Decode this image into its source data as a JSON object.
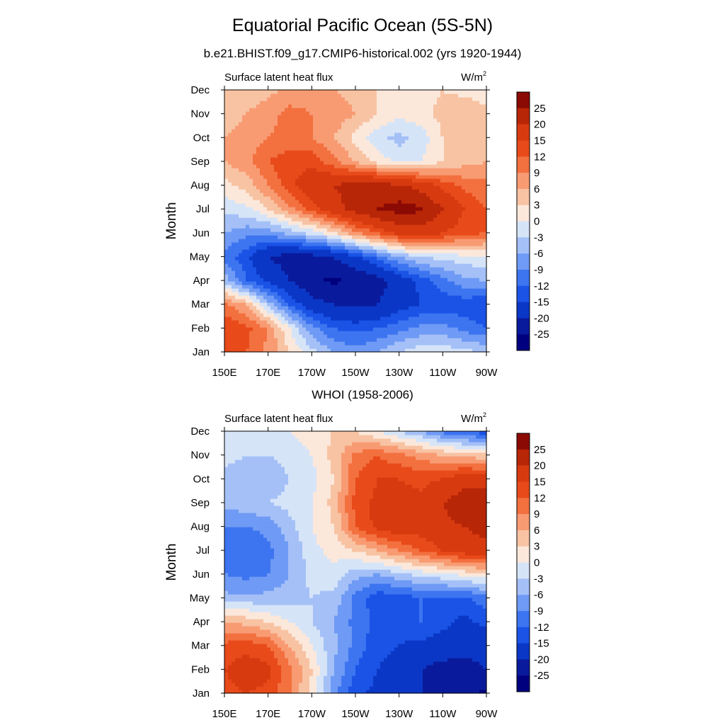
{
  "page": {
    "title": "Equatorial Pacific Ocean (5S-5N)",
    "colors": {
      "levels_neg": [
        "#00007f",
        "#0a1a9c",
        "#0b37c6",
        "#1a53e6",
        "#3d74f0",
        "#6f9af5",
        "#a4c0f7",
        "#d6e4f8"
      ],
      "levels_pos": [
        "#fbe8db",
        "#f8c3a3",
        "#f89b73",
        "#f3703f",
        "#e84a1a",
        "#d83a10",
        "#b82608",
        "#8b0a04"
      ]
    }
  },
  "chart_data": [
    {
      "type": "heatmap",
      "subtitle": "b.e21.BHIST.f09_g17.CMIP6-historical.002 (yrs 1920-1944)",
      "left_label": "Surface latent heat flux",
      "units_label": "W/m",
      "units_sup": "2",
      "ylabel": "Month",
      "x_ticks": [
        "150E",
        "170E",
        "170W",
        "150W",
        "130W",
        "110W",
        "90W"
      ],
      "y_ticks": [
        "Jan",
        "Feb",
        "Mar",
        "Apr",
        "May",
        "Jun",
        "Jul",
        "Aug",
        "Sep",
        "Oct",
        "Nov",
        "Dec"
      ],
      "colorbar_labels": [
        "25",
        "20",
        "15",
        "12",
        "9",
        "6",
        "3",
        "0",
        "-3",
        "-6",
        "-9",
        "-12",
        "-15",
        "-20",
        "-25"
      ],
      "x_lon_east": [
        150,
        160,
        170,
        180,
        190,
        200,
        210,
        220,
        230,
        240,
        250,
        260,
        270
      ],
      "values": [
        [
          14,
          12,
          8,
          3,
          -2,
          -6,
          -8,
          -6,
          -3,
          -1,
          -1,
          -2,
          -3
        ],
        [
          15,
          13,
          9,
          0,
          -8,
          -12,
          -13,
          -12,
          -10,
          -8,
          -8,
          -10,
          -12
        ],
        [
          10,
          6,
          -4,
          -12,
          -18,
          -20,
          -21,
          -20,
          -17,
          -15,
          -14,
          -14,
          -15
        ],
        [
          -4,
          -12,
          -16,
          -20,
          -24,
          -26,
          -24,
          -22,
          -18,
          -14,
          -10,
          -7,
          -6
        ],
        [
          -10,
          -14,
          -20,
          -22,
          -22,
          -20,
          -16,
          -11,
          -6,
          -3,
          -2,
          -1,
          -1
        ],
        [
          -6,
          -8,
          -8,
          -5,
          -2,
          2,
          8,
          12,
          16,
          17,
          15,
          13,
          12
        ],
        [
          -2,
          -1,
          3,
          8,
          13,
          18,
          22,
          25,
          27,
          26,
          20,
          15,
          12
        ],
        [
          2,
          4,
          9,
          14,
          18,
          20,
          22,
          22,
          21,
          18,
          14,
          11,
          10
        ],
        [
          6,
          8,
          12,
          14,
          14,
          10,
          6,
          2,
          -1,
          0,
          3,
          5,
          6
        ],
        [
          6,
          7,
          9,
          10,
          9,
          6,
          2,
          -2,
          -4,
          -2,
          3,
          6,
          6
        ],
        [
          5,
          6,
          8,
          10,
          9,
          8,
          6,
          3,
          1,
          2,
          4,
          6,
          5
        ],
        [
          3,
          4,
          5,
          7,
          8,
          6,
          5,
          3,
          2,
          2,
          3,
          2,
          0
        ]
      ]
    },
    {
      "type": "heatmap",
      "subtitle": "WHOI (1958-2006)",
      "left_label": "Surface latent heat flux",
      "units_label": "W/m",
      "units_sup": "2",
      "ylabel": "Month",
      "x_ticks": [
        "150E",
        "170E",
        "170W",
        "150W",
        "130W",
        "110W",
        "90W"
      ],
      "y_ticks": [
        "Jan",
        "Feb",
        "Mar",
        "Apr",
        "May",
        "Jun",
        "Jul",
        "Aug",
        "Sep",
        "Oct",
        "Nov",
        "Dec"
      ],
      "colorbar_labels": [
        "25",
        "20",
        "15",
        "12",
        "9",
        "6",
        "3",
        "0",
        "-3",
        "-6",
        "-9",
        "-12",
        "-15",
        "-20",
        "-25"
      ],
      "x_lon_east": [
        150,
        160,
        170,
        180,
        190,
        200,
        210,
        220,
        230,
        240,
        250,
        260,
        270
      ],
      "values": [
        [
          14,
          15,
          14,
          9,
          2,
          -8,
          -14,
          -16,
          -18,
          -20,
          -22,
          -24,
          -26
        ],
        [
          15,
          17,
          16,
          10,
          3,
          -6,
          -12,
          -15,
          -17,
          -20,
          -22,
          -22,
          -20
        ],
        [
          13,
          14,
          12,
          6,
          0,
          -5,
          -10,
          -14,
          -15,
          -16,
          -17,
          -18,
          -18
        ],
        [
          6,
          5,
          3,
          0,
          -3,
          -6,
          -10,
          -13,
          -14,
          -12,
          -14,
          -16,
          -14
        ],
        [
          -5,
          -5,
          -5,
          -4,
          -3,
          -4,
          -10,
          -14,
          -14,
          -12,
          -12,
          -13,
          -10
        ],
        [
          -9,
          -10,
          -9,
          -6,
          -2,
          -1,
          -5,
          -6,
          -4,
          -2,
          -1,
          1,
          2
        ],
        [
          -11,
          -12,
          -10,
          -6,
          -1,
          1,
          3,
          6,
          9,
          12,
          15,
          17,
          18
        ],
        [
          -9,
          -9,
          -8,
          -4,
          0,
          3,
          12,
          16,
          18,
          17,
          19,
          20,
          22
        ],
        [
          -5,
          -4,
          -3,
          -2,
          0,
          4,
          13,
          16,
          17,
          16,
          20,
          23,
          24
        ],
        [
          -4,
          -5,
          -5,
          -3,
          -1,
          3,
          12,
          15,
          15,
          14,
          15,
          18,
          17
        ],
        [
          -2,
          -3,
          -3,
          -2,
          0,
          4,
          10,
          12,
          10,
          8,
          6,
          5,
          4
        ],
        [
          -2,
          -3,
          -2,
          0,
          2,
          3,
          3,
          0,
          -3,
          -6,
          -10,
          -12,
          -14
        ]
      ]
    }
  ]
}
